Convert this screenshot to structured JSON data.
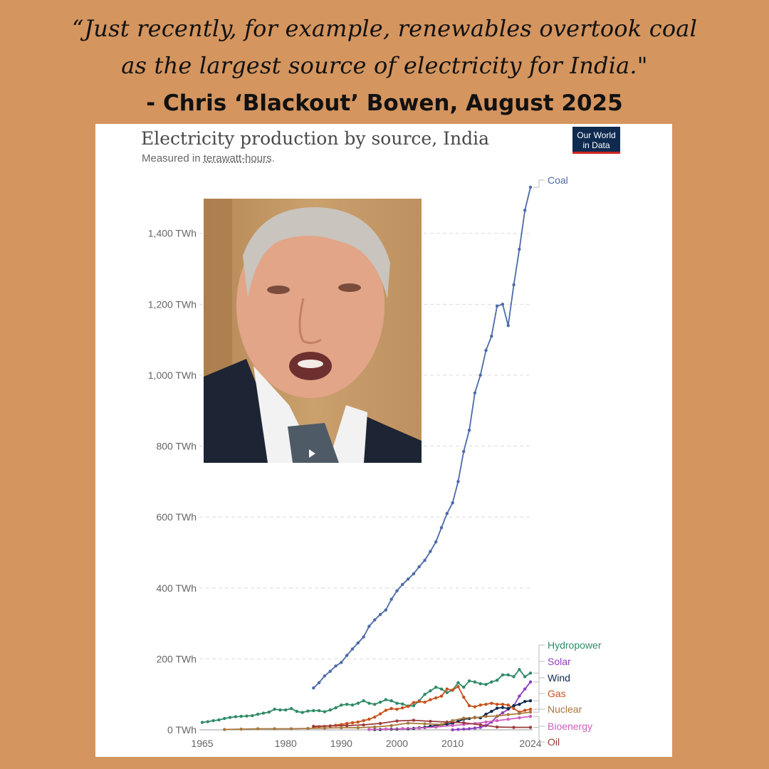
{
  "quote": {
    "line1": "“Just recently, for example, renewables overtook coal",
    "line2": "as the largest source of electricity for India.\"",
    "attribution": "- Chris ‘Blackout’ Bowen, August 2025"
  },
  "logo": {
    "line1": "Our World",
    "line2": "in Data",
    "color": "#0e2a4f",
    "accent": "#ce261e"
  },
  "chart_data": {
    "type": "line",
    "title": "Electricity production by source, India",
    "subtitle_prefix": "Measured in ",
    "subtitle_unit": "terawatt-hours",
    "subtitle_suffix": ".",
    "ylim": [
      0,
      1550
    ],
    "xlim": [
      1965,
      2024
    ],
    "yticks": [
      0,
      200,
      400,
      600,
      800,
      1000,
      1200,
      1400
    ],
    "ytick_labels": [
      "0 TWh",
      "200 TWh",
      "400 TWh",
      "600 TWh",
      "800 TWh",
      "1,000 TWh",
      "1,200 TWh",
      "1,400 TWh"
    ],
    "xticks": [
      1965,
      1980,
      1990,
      2000,
      2010,
      2024
    ],
    "xtick_labels": [
      "1965",
      "1980",
      "1990",
      "2000",
      "2010",
      "2024"
    ],
    "grid": true,
    "legend": "right-labels",
    "series": [
      {
        "name": "Coal",
        "color": "#4c6aa8",
        "x": [
          1985,
          1986,
          1987,
          1988,
          1989,
          1990,
          1991,
          1992,
          1993,
          1994,
          1995,
          1996,
          1997,
          1998,
          1999,
          2000,
          2001,
          2002,
          2003,
          2004,
          2005,
          2006,
          2007,
          2008,
          2009,
          2010,
          2011,
          2012,
          2013,
          2014,
          2015,
          2016,
          2017,
          2018,
          2019,
          2020,
          2021,
          2022,
          2023,
          2024
        ],
        "y": [
          118,
          133,
          152,
          165,
          180,
          190,
          210,
          228,
          245,
          262,
          292,
          310,
          325,
          338,
          368,
          392,
          410,
          425,
          440,
          460,
          478,
          503,
          530,
          570,
          610,
          640,
          700,
          785,
          845,
          950,
          1000,
          1070,
          1110,
          1195,
          1200,
          1140,
          1255,
          1355,
          1465,
          1530
        ]
      },
      {
        "name": "Hydropower",
        "color": "#2e8b65",
        "x": [
          1965,
          1966,
          1967,
          1968,
          1969,
          1970,
          1971,
          1972,
          1973,
          1974,
          1975,
          1976,
          1977,
          1978,
          1979,
          1980,
          1981,
          1982,
          1983,
          1984,
          1985,
          1986,
          1987,
          1988,
          1989,
          1990,
          1991,
          1992,
          1993,
          1994,
          1995,
          1996,
          1997,
          1998,
          1999,
          2000,
          2001,
          2002,
          2003,
          2004,
          2005,
          2006,
          2007,
          2008,
          2009,
          2010,
          2011,
          2012,
          2013,
          2014,
          2015,
          2016,
          2017,
          2018,
          2019,
          2020,
          2021,
          2022,
          2023,
          2024
        ],
        "y": [
          21,
          23,
          26,
          28,
          32,
          35,
          37,
          38,
          39,
          40,
          44,
          47,
          50,
          58,
          56,
          56,
          60,
          52,
          49,
          53,
          54,
          54,
          51,
          56,
          62,
          70,
          72,
          70,
          75,
          82,
          75,
          72,
          78,
          85,
          82,
          75,
          73,
          67,
          68,
          82,
          100,
          110,
          120,
          115,
          105,
          112,
          133,
          120,
          138,
          135,
          130,
          128,
          135,
          140,
          155,
          155,
          150,
          170,
          150,
          160
        ]
      },
      {
        "name": "Solar",
        "color": "#8c3fc0",
        "x": [
          2010,
          2011,
          2012,
          2013,
          2014,
          2015,
          2016,
          2017,
          2018,
          2019,
          2020,
          2021,
          2022,
          2023,
          2024
        ],
        "y": [
          0,
          1,
          2,
          3,
          5,
          7,
          12,
          22,
          38,
          48,
          58,
          68,
          95,
          115,
          135
        ]
      },
      {
        "name": "Wind",
        "color": "#0e2a4f",
        "x": [
          1995,
          1996,
          1997,
          1998,
          1999,
          2000,
          2001,
          2002,
          2003,
          2004,
          2005,
          2006,
          2007,
          2008,
          2009,
          2010,
          2011,
          2012,
          2013,
          2014,
          2015,
          2016,
          2017,
          2018,
          2019,
          2020,
          2021,
          2022,
          2023,
          2024
        ],
        "y": [
          1,
          1,
          1,
          2,
          2,
          2,
          3,
          3,
          4,
          6,
          7,
          10,
          12,
          14,
          16,
          18,
          24,
          30,
          32,
          35,
          34,
          44,
          52,
          61,
          63,
          60,
          68,
          72,
          80,
          82
        ]
      },
      {
        "name": "Gas",
        "color": "#c8521b",
        "x": [
          1985,
          1986,
          1987,
          1988,
          1989,
          1990,
          1991,
          1992,
          1993,
          1994,
          1995,
          1996,
          1997,
          1998,
          1999,
          2000,
          2001,
          2002,
          2003,
          2004,
          2005,
          2006,
          2007,
          2008,
          2009,
          2010,
          2011,
          2012,
          2013,
          2014,
          2015,
          2016,
          2017,
          2018,
          2019,
          2020,
          2021,
          2022,
          2023,
          2024
        ],
        "y": [
          8,
          9,
          10,
          11,
          13,
          15,
          18,
          20,
          22,
          26,
          30,
          36,
          45,
          55,
          60,
          58,
          62,
          66,
          77,
          80,
          78,
          85,
          90,
          95,
          115,
          112,
          122,
          92,
          68,
          65,
          70,
          72,
          75,
          72,
          72,
          70,
          60,
          50,
          55,
          58
        ]
      },
      {
        "name": "Nuclear",
        "color": "#a9773b",
        "x": [
          1969,
          1972,
          1975,
          1978,
          1981,
          1984,
          1987,
          1990,
          1993,
          1996,
          1999,
          2002,
          2005,
          2008,
          2010,
          2012,
          2014,
          2016,
          2018,
          2020,
          2022,
          2024
        ],
        "y": [
          1,
          2,
          3,
          3,
          3,
          4,
          5,
          6,
          6,
          8,
          12,
          19,
          17,
          15,
          26,
          33,
          34,
          38,
          39,
          43,
          46,
          50
        ]
      },
      {
        "name": "Bioenergy",
        "color": "#cf5fbf",
        "x": [
          1995,
          1998,
          2001,
          2004,
          2007,
          2010,
          2012,
          2014,
          2016,
          2018,
          2020,
          2022,
          2024
        ],
        "y": [
          1,
          2,
          3,
          5,
          8,
          12,
          15,
          18,
          22,
          26,
          30,
          34,
          38
        ]
      },
      {
        "name": "Oil",
        "color": "#9a3b3b",
        "x": [
          1985,
          1988,
          1991,
          1994,
          1997,
          2000,
          2003,
          2006,
          2009,
          2012,
          2015,
          2018,
          2021,
          2024
        ],
        "y": [
          10,
          11,
          12,
          14,
          18,
          25,
          27,
          24,
          22,
          20,
          14,
          8,
          7,
          7
        ]
      }
    ]
  }
}
